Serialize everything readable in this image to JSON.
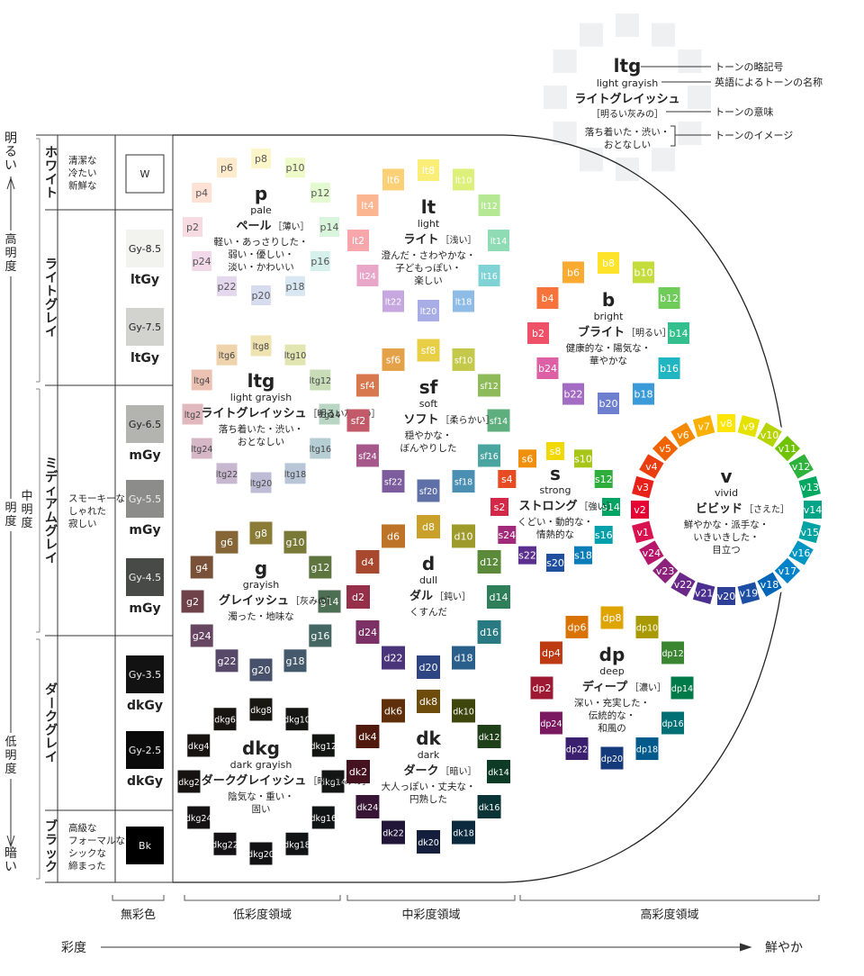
{
  "legend": {
    "code": "ltg",
    "english": "light grayish",
    "jp_name": "ライトグレイッシュ",
    "meaning": "［明るい灰みの］",
    "image_lines": [
      "落ち着いた・渋い・",
      "おとなしい"
    ],
    "callouts": [
      "トーンの略記号",
      "英語によるトーンの名称",
      "トーンの意味",
      "トーンのイメージ"
    ]
  },
  "left_axis": {
    "top_label": "明るい",
    "bottom_label": "暗い",
    "high": "高明度",
    "mid": "中明度",
    "low": "低明度",
    "mid_prefix": "明度"
  },
  "groups": [
    {
      "name": "ホワイト",
      "desc": [
        "清潔な",
        "冷たい",
        "新鮮な"
      ]
    },
    {
      "name": "ライトグレイ",
      "desc": []
    },
    {
      "name": "ミディアムグレイ",
      "desc": [
        "スモーキーな",
        "しゃれた",
        "寂しい"
      ]
    },
    {
      "name": "ダークグレイ",
      "desc": []
    },
    {
      "name": "ブラック",
      "desc": [
        "高級な",
        "フォーマルな",
        "シックな",
        "締まった"
      ]
    }
  ],
  "neutrals": [
    {
      "code": "W",
      "label": "",
      "color": "#ffffff",
      "text": "#222222"
    },
    {
      "code": "Gy-8.5",
      "label": "ltGy",
      "color": "#f2f2ee",
      "text": "#222222"
    },
    {
      "code": "Gy-7.5",
      "label": "ltGy",
      "color": "#d2d2cf",
      "text": "#222222"
    },
    {
      "code": "Gy-6.5",
      "label": "mGy",
      "color": "#b3b3b0",
      "text": "#222222"
    },
    {
      "code": "Gy-5.5",
      "label": "mGy",
      "color": "#8c8c8a",
      "text": "#f0f0f0"
    },
    {
      "code": "Gy-4.5",
      "label": "mGy",
      "color": "#474a47",
      "text": "#f0f0f0"
    },
    {
      "code": "Gy-3.5",
      "label": "dkGy",
      "color": "#121212",
      "text": "#f0f0f0"
    },
    {
      "code": "Gy-2.5",
      "label": "dkGy",
      "color": "#0a0a0a",
      "text": "#f0f0f0"
    },
    {
      "code": "Bk",
      "label": "",
      "color": "#000000",
      "text": "#f0f0f0"
    }
  ],
  "tones": [
    {
      "code": "p",
      "english": "pale",
      "jp": "ペール",
      "meaning": "［薄い］",
      "image": [
        "軽い・あっさりした・",
        "弱い・優しい・",
        "淡い・かわいい"
      ],
      "labels": [
        "p8",
        "p10",
        "p12",
        "p14",
        "p16",
        "p18",
        "p20",
        "p22",
        "p24",
        "p2",
        "p4",
        "p6"
      ],
      "colors": [
        "#fdf6c8",
        "#eefac7",
        "#e3f9cf",
        "#d9f6dd",
        "#d6f1ec",
        "#d8e7f2",
        "#d8dcef",
        "#e4d8ee",
        "#f1d9ea",
        "#f8dbe0",
        "#fde1d4",
        "#fdebcc"
      ],
      "text": "#555555"
    },
    {
      "code": "lt",
      "english": "light",
      "jp": "ライト",
      "meaning": "［浅い］",
      "image": [
        "澄んだ・さわやかな・",
        "子どもっぽい・",
        "楽しい"
      ],
      "labels": [
        "lt8",
        "lt10",
        "lt12",
        "lt14",
        "lt16",
        "lt18",
        "lt20",
        "lt22",
        "lt24",
        "lt2",
        "lt4",
        "lt6"
      ],
      "colors": [
        "#fbee78",
        "#dcf07a",
        "#b6e793",
        "#8fdcb4",
        "#80d3d4",
        "#8fbce6",
        "#a9ade6",
        "#c6a7df",
        "#e8a6c9",
        "#f7a7ac",
        "#fbb591",
        "#fbd077"
      ],
      "text": "#ffffff"
    },
    {
      "code": "b",
      "english": "bright",
      "jp": "ブライト",
      "meaning": "［明るい］",
      "image": [
        "健康的な・陽気な・",
        "華やかな"
      ],
      "labels": [
        "b8",
        "b10",
        "b12",
        "b14",
        "b16",
        "b18",
        "b20",
        "b22",
        "b24",
        "b2",
        "b4",
        "b6"
      ],
      "colors": [
        "#fde42a",
        "#c5dd3c",
        "#6fcb5a",
        "#34c08e",
        "#1fb5c1",
        "#3b9ad8",
        "#6f7fcf",
        "#a36bc3",
        "#dd5fa4",
        "#ef5168",
        "#f6743c",
        "#fbaa30"
      ],
      "text": "#ffffff"
    },
    {
      "code": "ltg",
      "english": "light grayish",
      "jp": "ライトグレイッシュ",
      "meaning": "［明るい灰みの］",
      "image": [
        "落ち着いた・渋い・",
        "おとなしい"
      ],
      "labels": [
        "ltg8",
        "ltg10",
        "ltg12",
        "ltg14",
        "ltg16",
        "ltg18",
        "ltg20",
        "ltg22",
        "ltg24",
        "ltg2",
        "ltg4",
        "ltg6"
      ],
      "colors": [
        "#f0e3b2",
        "#e0e5b1",
        "#c8dcb7",
        "#b9d6c5",
        "#b4ced3",
        "#b7c5d6",
        "#bdbcd4",
        "#c7b8cf",
        "#d5b7c6",
        "#e0b8be",
        "#ebc1b3",
        "#efd3ad"
      ],
      "text": "#444444"
    },
    {
      "code": "sf",
      "english": "soft",
      "jp": "ソフト",
      "meaning": "［柔らかい］",
      "image": [
        "穏やかな・",
        "ぼんやりした"
      ],
      "labels": [
        "sf8",
        "sf10",
        "sf12",
        "sf14",
        "sf16",
        "sf18",
        "sf20",
        "sf22",
        "sf24",
        "sf2",
        "sf4",
        "sf6"
      ],
      "colors": [
        "#e8cf45",
        "#c4c94c",
        "#8fba5a",
        "#5fae7e",
        "#4aa5a1",
        "#4b8fb3",
        "#5e70a7",
        "#7c5c9c",
        "#a6588b",
        "#c35a6a",
        "#d8784f",
        "#e3a247"
      ],
      "text": "#ffffff"
    },
    {
      "code": "s",
      "english": "strong",
      "jp": "ストロング",
      "meaning": "［強い］",
      "image": [
        "くどい・動的な・",
        "情熱的な"
      ],
      "labels": [
        "s8",
        "s10",
        "s12",
        "s14",
        "s16",
        "s18",
        "s20",
        "s22",
        "s24",
        "s2",
        "s4",
        "s6"
      ],
      "colors": [
        "#f1d800",
        "#a8c61a",
        "#2eae3d",
        "#00a563",
        "#00a0ab",
        "#0a7cb8",
        "#1f4f9e",
        "#5b2f8e",
        "#a22a7a",
        "#d32848",
        "#e64b21",
        "#f08f0c"
      ],
      "text": "#ffffff"
    },
    {
      "code": "v",
      "english": "vivid",
      "jp": "ビビッド",
      "meaning": "［さえた］",
      "image": [
        "鮮やかな・派手な・",
        "いきいきした・",
        "目立つ"
      ],
      "labels": [
        "v8",
        "v9",
        "v10",
        "v11",
        "v12",
        "v13",
        "v14",
        "v15",
        "v16",
        "v17",
        "v18",
        "v19",
        "v20",
        "v21",
        "v22",
        "v23",
        "v24",
        "v1",
        "v2",
        "v3",
        "v4",
        "v5",
        "v6",
        "v7"
      ],
      "colors": [
        "#ffe600",
        "#e6e200",
        "#b5d400",
        "#6fc300",
        "#2fb23c",
        "#00a862",
        "#00a487",
        "#00a3a3",
        "#0096c3",
        "#0082c9",
        "#0066b7",
        "#1c4ea3",
        "#2e3f97",
        "#4a2f90",
        "#6a2988",
        "#8c227c",
        "#b6176a",
        "#d9134f",
        "#e60033",
        "#e8201a",
        "#ea3d10",
        "#ef6300",
        "#f48800",
        "#f9b000"
      ],
      "text": "#ffffff"
    },
    {
      "code": "g",
      "english": "grayish",
      "jp": "グレイッシュ",
      "meaning": "［灰みの］",
      "image": [
        "濁った・地味な"
      ],
      "labels": [
        "g8",
        "g10",
        "g12",
        "g14",
        "g16",
        "g18",
        "g20",
        "g22",
        "g24",
        "g2",
        "g4",
        "g6"
      ],
      "colors": [
        "#8a7c36",
        "#7a7a38",
        "#5f7540",
        "#4c6e52",
        "#456763",
        "#44596b",
        "#48516a",
        "#56496a",
        "#674661",
        "#6f4249",
        "#785138",
        "#866637"
      ],
      "text": "#ffffff"
    },
    {
      "code": "d",
      "english": "dull",
      "jp": "ダル",
      "meaning": "［鈍い］",
      "image": [
        "くすんだ"
      ],
      "labels": [
        "d8",
        "d10",
        "d12",
        "d14",
        "d16",
        "d18",
        "d20",
        "d22",
        "d24",
        "d2",
        "d4",
        "d6"
      ],
      "colors": [
        "#c9a12a",
        "#9e9b2c",
        "#5b8a3a",
        "#2e7f5a",
        "#2a7a83",
        "#2a5f8c",
        "#2d4683",
        "#4b357a",
        "#7b3066",
        "#96304a",
        "#a8482f",
        "#bd7328"
      ],
      "text": "#ffffff"
    },
    {
      "code": "dp",
      "english": "deep",
      "jp": "ディープ",
      "meaning": "［濃い］",
      "image": [
        "深い・充実した・",
        "伝統的な・",
        "和風の"
      ],
      "labels": [
        "dp8",
        "dp10",
        "dp12",
        "dp14",
        "dp16",
        "dp18",
        "dp20",
        "dp22",
        "dp24",
        "dp2",
        "dp4",
        "dp6"
      ],
      "colors": [
        "#dea400",
        "#a89a00",
        "#3a8530",
        "#007a48",
        "#007074",
        "#005b8c",
        "#143a7c",
        "#3a1f6e",
        "#7a1860",
        "#9f1833",
        "#bd3a13",
        "#d87300"
      ],
      "text": "#ffffff"
    },
    {
      "code": "dkg",
      "english": "dark grayish",
      "jp": "ダークグレイッシュ",
      "meaning": "［暗い灰みの］",
      "image": [
        "陰気な・重い・",
        "固い"
      ],
      "labels": [
        "dkg8",
        "dkg10",
        "dkg12",
        "dkg14",
        "dkg16",
        "dkg18",
        "dkg20",
        "dkg22",
        "dkg24",
        "dkg2",
        "dkg4",
        "dkg6"
      ],
      "colors": [
        "#181712",
        "#151613",
        "#131512",
        "#121513",
        "#111414",
        "#111315",
        "#121215",
        "#141215",
        "#151214",
        "#161212",
        "#171311",
        "#181511"
      ],
      "text": "#f0f0f0"
    },
    {
      "code": "dk",
      "english": "dark",
      "jp": "ダーク",
      "meaning": "［暗い］",
      "image": [
        "大人っぽい・丈夫な・",
        "円熟した"
      ],
      "labels": [
        "dk8",
        "dk10",
        "dk12",
        "dk14",
        "dk16",
        "dk18",
        "dk20",
        "dk22",
        "dk24",
        "dk2",
        "dk4",
        "dk6"
      ],
      "colors": [
        "#6d4c0c",
        "#3e450d",
        "#1f3f18",
        "#0d3b26",
        "#0b3436",
        "#0b2a3d",
        "#141f3d",
        "#221638",
        "#361634",
        "#45121f",
        "#511a0e",
        "#5e2f0a"
      ],
      "text": "#f0f0f0"
    }
  ],
  "regions": [
    "無彩色",
    "低彩度領域",
    "中彩度領域",
    "高彩度領域"
  ],
  "bottom_axis": {
    "start": "彩度",
    "end": "鮮やか"
  },
  "colors": {
    "frame": "#333333",
    "axis": "#333333"
  }
}
